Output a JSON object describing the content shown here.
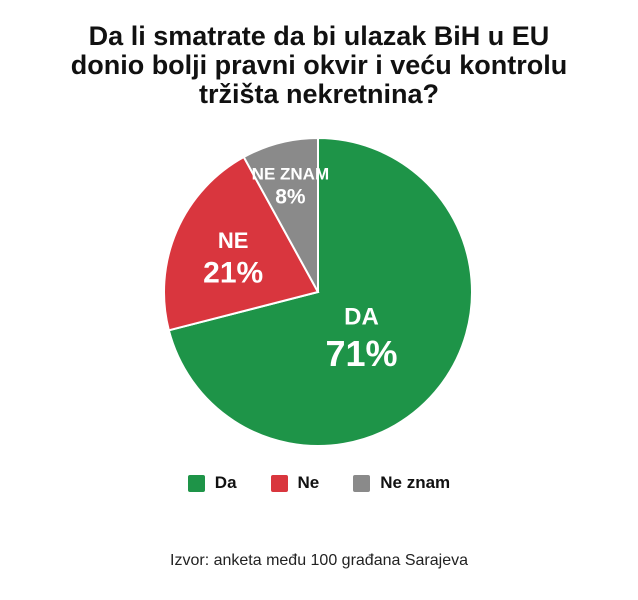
{
  "chart_data": {
    "type": "pie",
    "title": [
      "Da li smatrate da bi ulazak BiH u EU",
      "donio bolji pravni okvir i veću kontrolu",
      "tržišta nekretnina?"
    ],
    "slices": [
      {
        "label": "DA",
        "legend": "Da",
        "value": 71,
        "value_label": "71%",
        "color": "#1e9448"
      },
      {
        "label": "NE",
        "legend": "Ne",
        "value": 21,
        "value_label": "21%",
        "color": "#d9363e"
      },
      {
        "label": "NE ZNAM",
        "legend": "Ne znam",
        "value": 8,
        "value_label": "8%",
        "color": "#8a8a8a"
      }
    ],
    "legend_position": "bottom",
    "source": "Izvor: anketa među 100 građana Sarajeva"
  }
}
